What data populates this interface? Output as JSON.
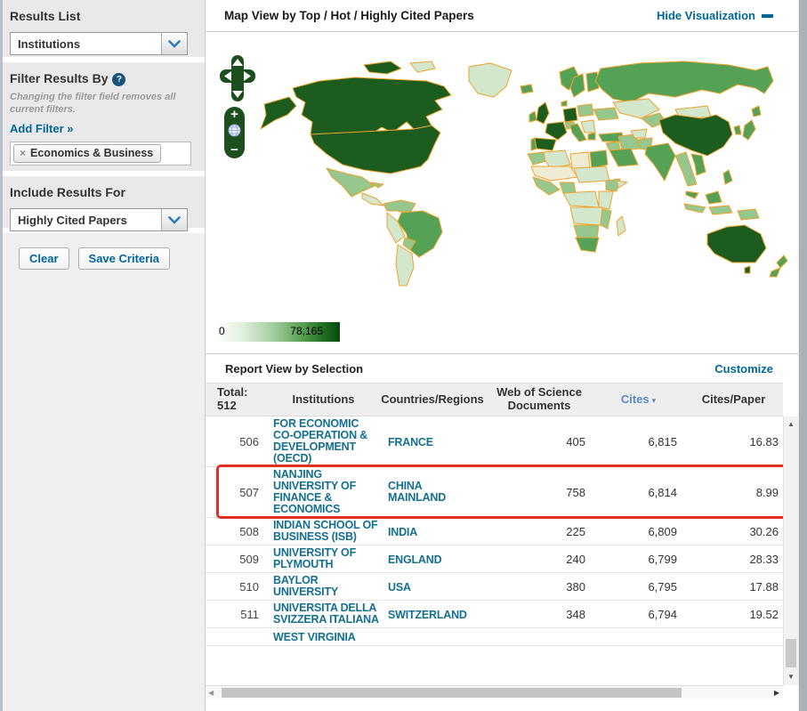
{
  "sidebar": {
    "results_list": {
      "label": "Results List",
      "selected": "Institutions"
    },
    "filter": {
      "label": "Filter Results By",
      "help_icon": "?",
      "note": "Changing the filter field removes all current filters.",
      "add_filter": "Add Filter »",
      "tags": [
        {
          "remove": "×",
          "label": "Economics & Business"
        }
      ]
    },
    "include": {
      "label": "Include Results For",
      "selected": "Highly Cited Papers"
    },
    "buttons": {
      "clear": "Clear",
      "save": "Save Criteria"
    }
  },
  "map": {
    "title": "Map View by Top / Hot / Highly Cited Papers",
    "hide_link": "Hide Visualization",
    "controls": {
      "zoom_in": "+",
      "zoom_out": "−"
    },
    "legend": {
      "min": "0",
      "max": "78,165"
    },
    "colors": {
      "darkest": "#1d5c1f",
      "medium": "#55a155",
      "light": "#96c78e",
      "pale": "#d3e7cc",
      "cream": "#f0ecd4",
      "border": "#eda32b"
    }
  },
  "report": {
    "title": "Report View by Selection",
    "customize": "Customize",
    "table": {
      "total_label": "Total:",
      "total_value": "512",
      "col_institutions": "Institutions",
      "col_countries": "Countries/Regions",
      "col_docs": "Web of Science Documents",
      "col_cites": "Cites",
      "col_cpp": "Cites/Paper",
      "sort_icon": "▾",
      "rows": [
        {
          "rank": "506",
          "institution": "FOR ECONOMIC CO-OPERATION & DEVELOPMENT (OECD)",
          "country": "FRANCE",
          "docs": "405",
          "cites": "6,815",
          "cpp": "16.83",
          "highlighted": false
        },
        {
          "rank": "507",
          "institution": "NANJING UNIVERSITY OF FINANCE & ECONOMICS",
          "country": "CHINA MAINLAND",
          "docs": "758",
          "cites": "6,814",
          "cpp": "8.99",
          "highlighted": true
        },
        {
          "rank": "508",
          "institution": "INDIAN SCHOOL OF BUSINESS (ISB)",
          "country": "INDIA",
          "docs": "225",
          "cites": "6,809",
          "cpp": "30.26",
          "highlighted": false
        },
        {
          "rank": "509",
          "institution": "UNIVERSITY OF PLYMOUTH",
          "country": "ENGLAND",
          "docs": "240",
          "cites": "6,799",
          "cpp": "28.33",
          "highlighted": false
        },
        {
          "rank": "510",
          "institution": "BAYLOR UNIVERSITY",
          "country": "USA",
          "docs": "380",
          "cites": "6,795",
          "cpp": "17.88",
          "highlighted": false
        },
        {
          "rank": "511",
          "institution": "UNIVERSITA DELLA SVIZZERA ITALIANA",
          "country": "SWITZERLAND",
          "docs": "348",
          "cites": "6,794",
          "cpp": "19.52",
          "highlighted": false
        },
        {
          "rank": "",
          "institution": "WEST VIRGINIA",
          "country": "",
          "docs": "",
          "cites": "",
          "cpp": "",
          "highlighted": false
        }
      ]
    }
  },
  "scrollbar": {
    "up": "▲",
    "down": "▼",
    "left": "◀",
    "right": "▶"
  },
  "accent_colors": {
    "teal_link": "#006699",
    "table_link": "#15708f",
    "sort_blue": "#5b87c5",
    "highlight_red": "#e2301f"
  }
}
